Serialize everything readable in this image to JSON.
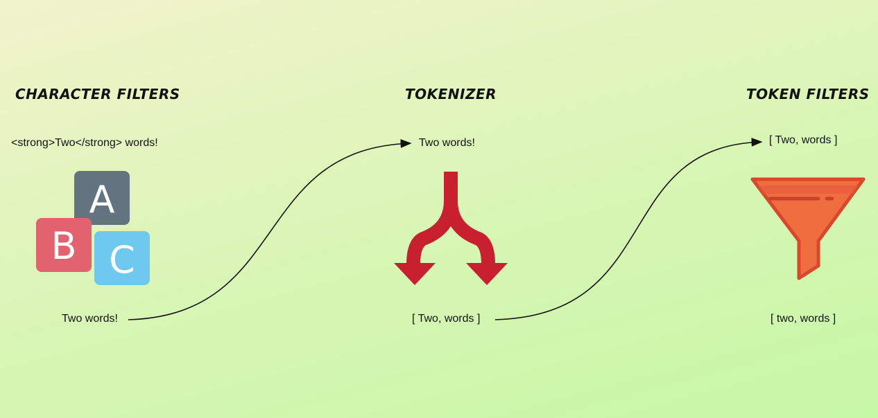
{
  "stages": {
    "character_filters": {
      "title": "CHARACTER FILTERS",
      "input": "<strong>Two</strong> words!",
      "output": "Two words!",
      "icon": "abc-blocks-icon"
    },
    "tokenizer": {
      "title": "TOKENIZER",
      "input": "Two words!",
      "output": "[ Two, words ]",
      "icon": "split-arrows-icon"
    },
    "token_filters": {
      "title": "TOKEN FILTERS",
      "input": "[ Two, words ]",
      "output": "[ two, words ]",
      "icon": "funnel-icon"
    }
  },
  "blocks": {
    "a": "A",
    "b": "B",
    "c": "C"
  },
  "colors": {
    "block_a": "#637380",
    "block_b": "#e2636f",
    "block_c": "#6fc9ef",
    "split_arrow": "#c8202f",
    "funnel": "#ef6d3f",
    "funnel_outline": "#d9482a"
  }
}
